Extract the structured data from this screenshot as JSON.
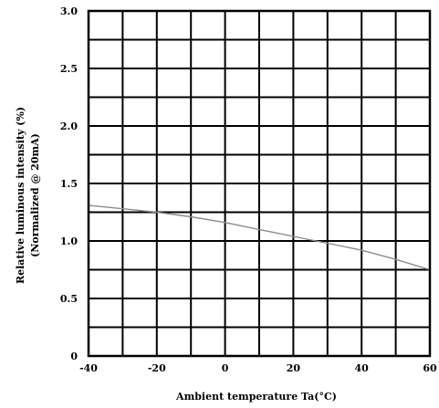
{
  "chart_data": {
    "type": "line",
    "title": "",
    "xlabel": "Ambient temperature Ta(°C)",
    "ylabel": "Relative luminous intensity (%)",
    "ylabel2": "(Normalized @ 20mA)",
    "xlim": [
      -40,
      60
    ],
    "ylim": [
      0,
      3.0
    ],
    "x_tick_values": [
      -40,
      -30,
      -20,
      -10,
      0,
      10,
      20,
      30,
      40,
      50,
      60
    ],
    "y_tick_values": [
      0,
      0.25,
      0.5,
      0.75,
      1.0,
      1.25,
      1.5,
      1.75,
      2.0,
      2.25,
      2.5,
      2.75,
      3.0
    ],
    "x_tick_labels": [
      {
        "value": -40,
        "label": "-40"
      },
      {
        "value": -20,
        "label": "-20"
      },
      {
        "value": 0,
        "label": "0"
      },
      {
        "value": 20,
        "label": "20"
      },
      {
        "value": 40,
        "label": "40"
      },
      {
        "value": 60,
        "label": "60"
      }
    ],
    "y_tick_labels": [
      {
        "value": 0,
        "label": "0"
      },
      {
        "value": 0.5,
        "label": "0.5"
      },
      {
        "value": 1.0,
        "label": "1.0"
      },
      {
        "value": 1.5,
        "label": "1.5"
      },
      {
        "value": 2.0,
        "label": "2.0"
      },
      {
        "value": 2.5,
        "label": "2.5"
      },
      {
        "value": 3.0,
        "label": "3.0"
      }
    ],
    "grid": true,
    "series": [
      {
        "color": "#8c8c8c",
        "x": [
          -40,
          -30,
          -20,
          -10,
          0,
          10,
          20,
          30,
          40,
          50,
          60
        ],
        "y": [
          1.31,
          1.28,
          1.25,
          1.21,
          1.16,
          1.1,
          1.04,
          0.98,
          0.92,
          0.84,
          0.75
        ]
      }
    ]
  }
}
